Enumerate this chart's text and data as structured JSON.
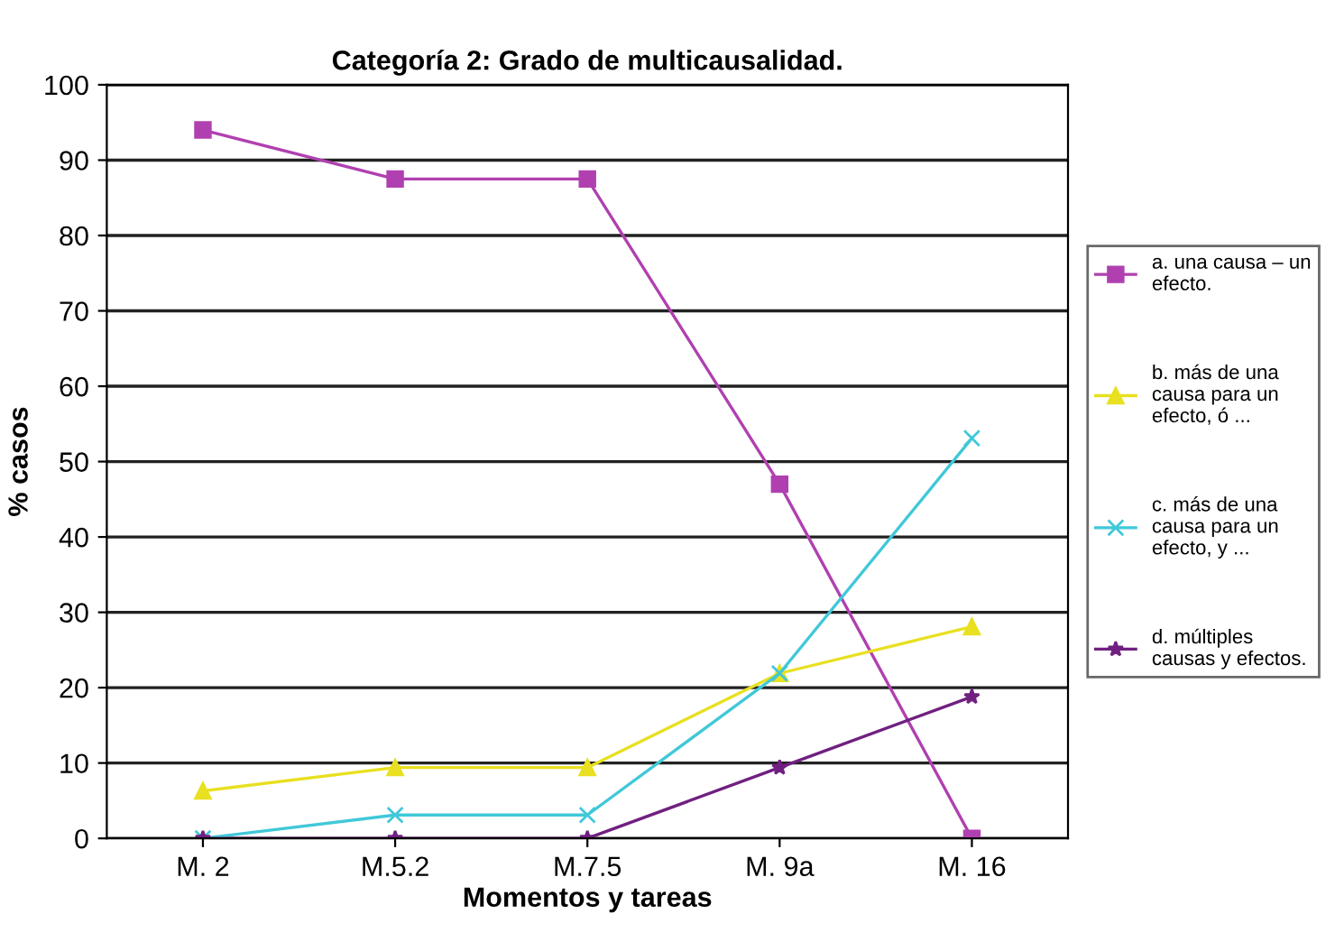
{
  "chart_data": {
    "type": "line",
    "title": "Categoría 2: Grado de multicausalidad.",
    "xlabel": "Momentos y tareas",
    "ylabel": "% casos",
    "categories": [
      "M. 2",
      "M.5.2",
      "M.7.5",
      "M. 9a",
      "M. 16"
    ],
    "series": [
      {
        "name": "a. una causa – un efecto.",
        "color": "#b040b0",
        "marker": "square",
        "values": [
          94,
          87.5,
          87.5,
          47,
          0
        ]
      },
      {
        "name": "b. más de una causa para un efecto, ó ...",
        "color": "#e8e020",
        "marker": "triangle",
        "values": [
          6.3,
          9.4,
          9.4,
          21.9,
          28.1
        ]
      },
      {
        "name": "c. más de una causa para un efecto, y ...",
        "color": "#40c8d8",
        "marker": "cross",
        "values": [
          0,
          3.1,
          3.1,
          21.9,
          53.1
        ]
      },
      {
        "name": "d. múltiples causas y efectos.",
        "color": "#702080",
        "marker": "star",
        "values": [
          0,
          0,
          0,
          9.4,
          18.8
        ]
      }
    ],
    "ylim": [
      0,
      100
    ],
    "yticks": [
      0,
      10,
      20,
      30,
      40,
      50,
      60,
      70,
      80,
      90,
      100
    ],
    "grid": "y",
    "legend": "right",
    "line_style": "solid"
  }
}
